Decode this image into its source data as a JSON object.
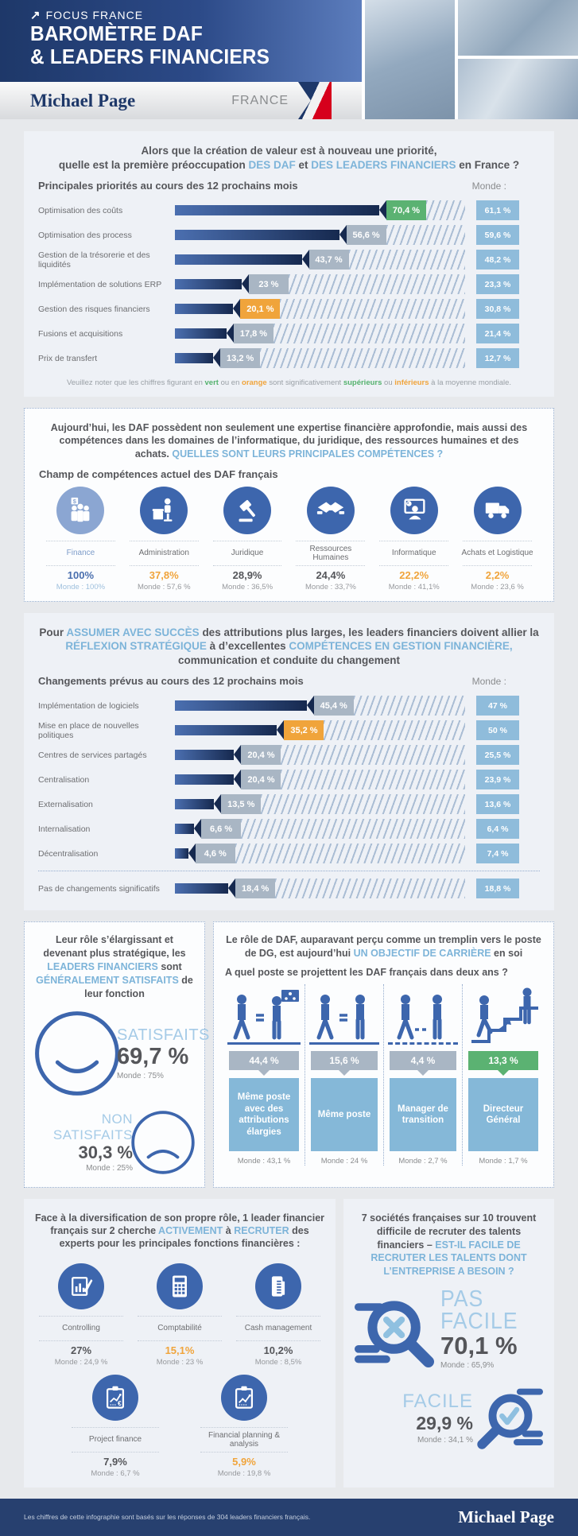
{
  "colors": {
    "accent_light_blue": "#7db4d9",
    "navy": "#1e3869",
    "bar_gradient_start": "#4b6fb0",
    "bar_gradient_end": "#16294f",
    "green": "#5bb272",
    "orange": "#f0a43b",
    "tag_gray": "#a9b6c4",
    "monde_box_blue": "#8fbcdb",
    "icon_circle_blue": "#3d66ad",
    "icon_circle_light": "#8ba6d2",
    "label_box_blue": "#85b8d8",
    "footer_navy": "#27406f",
    "flag_red": "#d6001c"
  },
  "header": {
    "kicker": "FOCUS FRANCE",
    "title1": "BAROMÈTRE DAF",
    "title2": "& LEADERS FINANCIERS",
    "brand": "Michael Page",
    "country": "FRANCE"
  },
  "section1": {
    "title_line1": "Alors que la création de valeur est à nouveau une priorité,",
    "title2_a": "quelle est la première préoccupation ",
    "title2_b": "DES DAF",
    "title2_c": " et ",
    "title2_d": "DES LEADERS FINANCIERS",
    "title2_e": " en France ?",
    "subtitle": "Principales priorités au cours des 12 prochains mois",
    "monde_label": "Monde :",
    "bars": [
      {
        "label": "Optimisation des coûts",
        "value": "70,4 %",
        "value_num": 70.4,
        "monde": "61,1 %"
      },
      {
        "label": "Optimisation des process",
        "value": "56,6 %",
        "value_num": 56.6,
        "monde": "59,6 %"
      },
      {
        "label": "Gestion de la trésorerie et des liquidités",
        "value": "43,7 %",
        "value_num": 43.7,
        "monde": "48,2 %"
      },
      {
        "label": "Implémentation de solutions ERP",
        "value": "23 %",
        "value_num": 23,
        "monde": "23,3 %"
      },
      {
        "label": "Gestion des risques financiers",
        "value": "20,1 %",
        "value_num": 20.1,
        "monde": "30,8 %"
      },
      {
        "label": "Fusions et acquisitions",
        "value": "17,8 %",
        "value_num": 17.8,
        "monde": "21,4 %"
      },
      {
        "label": "Prix de transfert",
        "value": "13,2 %",
        "value_num": 13.2,
        "monde": "12,7 %"
      }
    ],
    "note_a": "Veuillez noter que les chiffres figurant en ",
    "note_green1": "vert",
    "note_b": " ou en ",
    "note_orange1": "orange",
    "note_c": " sont significativement ",
    "note_green2": "supérieurs",
    "note_d": " ou ",
    "note_orange2": "inférieurs",
    "note_e": " à la moyenne mondiale."
  },
  "section2": {
    "title_a": "Aujourd’hui, les DAF possèdent non seulement une expertise financière approfondie, mais aussi des compétences dans les domaines de l’informatique, du juridique, des ressources humaines et des achats. ",
    "title_b": "QUELLES SONT LEURS PRINCIPALES COMPÉTENCES ?",
    "subtitle": "Champ de compétences actuel des DAF français",
    "items": [
      {
        "name": "Finance",
        "value": "100%",
        "monde": "Monde : 100%"
      },
      {
        "name": "Administration",
        "value": "37,8%",
        "monde": "Monde : 57,6 %"
      },
      {
        "name": "Juridique",
        "value": "28,9%",
        "monde": "Monde : 36,5%"
      },
      {
        "name": "Ressources Humaines",
        "value": "24,4%",
        "monde": "Monde : 33,7%"
      },
      {
        "name": "Informatique",
        "value": "22,2%",
        "monde": "Monde : 41,1%"
      },
      {
        "name": "Achats et Logistique",
        "value": "2,2%",
        "monde": "Monde : 23,6 %"
      }
    ]
  },
  "section3": {
    "title_a": "Pour ",
    "title_b": "ASSUMER AVEC SUCCÈS",
    "title_c": " des attributions plus larges, les leaders financiers doivent allier la ",
    "title_d": "RÉFLEXION STRATÉGIQUE",
    "title_e": " à d’excellentes ",
    "title_f": "COMPÉTENCES EN GESTION FINANCIÈRE,",
    "title_g": " communication et conduite du changement",
    "subtitle": "Changements prévus au cours des 12 prochains mois",
    "monde_label": "Monde :",
    "bars": [
      {
        "label": "Implémentation de logiciels",
        "value": "45,4 %",
        "value_num": 45.4,
        "monde": "47 %"
      },
      {
        "label": "Mise en place de nouvelles politiques",
        "value": "35,2 %",
        "value_num": 35.2,
        "monde": "50 %"
      },
      {
        "label": "Centres de services partagés",
        "value": "20,4 %",
        "value_num": 20.4,
        "monde": "25,5 %"
      },
      {
        "label": "Centralisation",
        "value": "20,4 %",
        "value_num": 20.4,
        "monde": "23,9 %"
      },
      {
        "label": "Externalisation",
        "value": "13,5 %",
        "value_num": 13.5,
        "monde": "13,6 %"
      },
      {
        "label": "Internalisation",
        "value": "6,6 %",
        "value_num": 6.6,
        "monde": "6,4 %"
      },
      {
        "label": "Décentralisation",
        "value": "4,6 %",
        "value_num": 4.6,
        "monde": "7,4 %"
      },
      {
        "label": "Pas de changements significatifs",
        "value": "18,4 %",
        "value_num": 18.4,
        "monde": "18,8 %"
      }
    ]
  },
  "section4_left": {
    "title_a": "Leur rôle s’élargissant et devenant plus stratégique, les ",
    "title_b": "LEADERS FINANCIERS",
    "title_c": " sont ",
    "title_d": "GÉNÉRALEMENT SATISFAITS",
    "title_e": " de leur fonction",
    "satisfied_label": "SATISFAITS",
    "satisfied_value": "69,7 %",
    "satisfied_monde": "Monde : 75%",
    "unsatisfied_label": "NON SATISFAITS",
    "unsatisfied_value": "30,3 %",
    "unsatisfied_monde": "Monde : 25%"
  },
  "section4_right": {
    "title_a": "Le rôle de DAF, auparavant perçu comme un tremplin vers le poste de DG, est aujourd’hui ",
    "title_b": "UN OBJECTIF DE CARRIÈRE",
    "title_c": " en soi",
    "question": "A quel poste se projettent les DAF français dans deux ans ?",
    "columns": [
      {
        "value": "44,4 %",
        "label": "Même poste avec des attributions élargies",
        "monde": "Monde : 43,1 %"
      },
      {
        "value": "15,6 %",
        "label": "Même poste",
        "monde": "Monde : 24 %"
      },
      {
        "value": "4,4 %",
        "label": "Manager de transition",
        "monde": "Monde : 2,7 %"
      },
      {
        "value": "13,3 %",
        "label": "Directeur Général",
        "monde": "Monde : 1,7 %"
      }
    ]
  },
  "section5_left": {
    "title_a": "Face à la diversification de son propre rôle, 1 leader financier français sur 2 cherche ",
    "title_b": "ACTIVEMENT",
    "title_c": " à ",
    "title_d": "RECRUTER",
    "title_e": " des experts pour les principales fonctions financières :",
    "items": [
      {
        "name": "Controlling",
        "value": "27%",
        "monde": "Monde : 24,9 %"
      },
      {
        "name": "Comptabilité",
        "value": "15,1%",
        "monde": "Monde : 23 %"
      },
      {
        "name": "Cash management",
        "value": "10,2%",
        "monde": "Monde : 8,5%"
      },
      {
        "name": "Project finance",
        "value": "7,9%",
        "monde": "Monde : 6,7 %"
      },
      {
        "name": "Financial planning & analysis",
        "value": "5,9%",
        "monde": "Monde : 19,8 %"
      }
    ]
  },
  "section5_right": {
    "title_a": "7 sociétés françaises sur 10 trouvent difficile de recruter des talents financiers – ",
    "title_b": "EST-IL FACILE DE RECRUTER LES TALENTS DONT L’ENTREPRISE A BESOIN ?",
    "hard_label1": "PAS",
    "hard_label2": "FACILE",
    "hard_value": "70,1 %",
    "hard_monde": "Monde : 65,9%",
    "easy_label": "FACILE",
    "easy_value": "29,9 %",
    "easy_monde": "Monde : 34,1 %"
  },
  "footer": {
    "note": "Les chiffres de cette infographie sont basés sur les réponses de 304 leaders financiers français.",
    "brand": "Michael Page"
  },
  "chart_data": [
    {
      "type": "bar",
      "title": "Principales priorités au cours des 12 prochains mois",
      "categories": [
        "Optimisation des coûts",
        "Optimisation des process",
        "Gestion de la trésorerie et des liquidités",
        "Implémentation de solutions ERP",
        "Gestion des risques financiers",
        "Fusions et acquisitions",
        "Prix de transfert"
      ],
      "series": [
        {
          "name": "France",
          "values": [
            70.4,
            56.6,
            43.7,
            23,
            20.1,
            17.8,
            13.2
          ]
        },
        {
          "name": "Monde",
          "values": [
            61.1,
            59.6,
            48.2,
            23.3,
            30.8,
            21.4,
            12.7
          ]
        }
      ],
      "unit": "%",
      "xlim": [
        0,
        100
      ],
      "highlight": {
        "green_above_world": [
          "Optimisation des coûts"
        ],
        "orange_below_world": [
          "Gestion des risques financiers"
        ]
      }
    },
    {
      "type": "bar",
      "title": "Champ de compétences actuel des DAF français",
      "categories": [
        "Finance",
        "Administration",
        "Juridique",
        "Ressources Humaines",
        "Informatique",
        "Achats et Logistique"
      ],
      "series": [
        {
          "name": "France",
          "values": [
            100,
            37.8,
            28.9,
            24.4,
            22.2,
            2.2
          ]
        },
        {
          "name": "Monde",
          "values": [
            100,
            57.6,
            36.5,
            33.7,
            41.1,
            23.6
          ]
        }
      ],
      "unit": "%"
    },
    {
      "type": "bar",
      "title": "Changements prévus au cours des 12 prochains mois",
      "categories": [
        "Implémentation de logiciels",
        "Mise en place de nouvelles politiques",
        "Centres de services partagés",
        "Centralisation",
        "Externalisation",
        "Internalisation",
        "Décentralisation",
        "Pas de changements significatifs"
      ],
      "series": [
        {
          "name": "France",
          "values": [
            45.4,
            35.2,
            20.4,
            20.4,
            13.5,
            6.6,
            4.6,
            18.4
          ]
        },
        {
          "name": "Monde",
          "values": [
            47,
            50,
            25.5,
            23.9,
            13.6,
            6.4,
            7.4,
            18.8
          ]
        }
      ],
      "unit": "%"
    },
    {
      "type": "bar",
      "title": "Satisfaction des leaders financiers",
      "categories": [
        "Satisfaits",
        "Non satisfaits"
      ],
      "series": [
        {
          "name": "France",
          "values": [
            69.7,
            30.3
          ]
        },
        {
          "name": "Monde",
          "values": [
            75,
            25
          ]
        }
      ],
      "unit": "%"
    },
    {
      "type": "bar",
      "title": "A quel poste se projettent les DAF français dans deux ans ?",
      "categories": [
        "Même poste avec des attributions élargies",
        "Même poste",
        "Manager de transition",
        "Directeur Général"
      ],
      "series": [
        {
          "name": "France",
          "values": [
            44.4,
            15.6,
            4.4,
            13.3
          ]
        },
        {
          "name": "Monde",
          "values": [
            43.1,
            24,
            2.7,
            1.7
          ]
        }
      ],
      "unit": "%"
    },
    {
      "type": "bar",
      "title": "Fonctions financières recrutées",
      "categories": [
        "Controlling",
        "Comptabilité",
        "Cash management",
        "Project finance",
        "Financial planning & analysis"
      ],
      "series": [
        {
          "name": "France",
          "values": [
            27,
            15.1,
            10.2,
            7.9,
            5.9
          ]
        },
        {
          "name": "Monde",
          "values": [
            24.9,
            23,
            8.5,
            6.7,
            19.8
          ]
        }
      ],
      "unit": "%"
    },
    {
      "type": "bar",
      "title": "Est-il facile de recruter les talents dont l’entreprise a besoin ?",
      "categories": [
        "Pas facile",
        "Facile"
      ],
      "series": [
        {
          "name": "France",
          "values": [
            70.1,
            29.9
          ]
        },
        {
          "name": "Monde",
          "values": [
            65.9,
            34.1
          ]
        }
      ],
      "unit": "%"
    }
  ]
}
